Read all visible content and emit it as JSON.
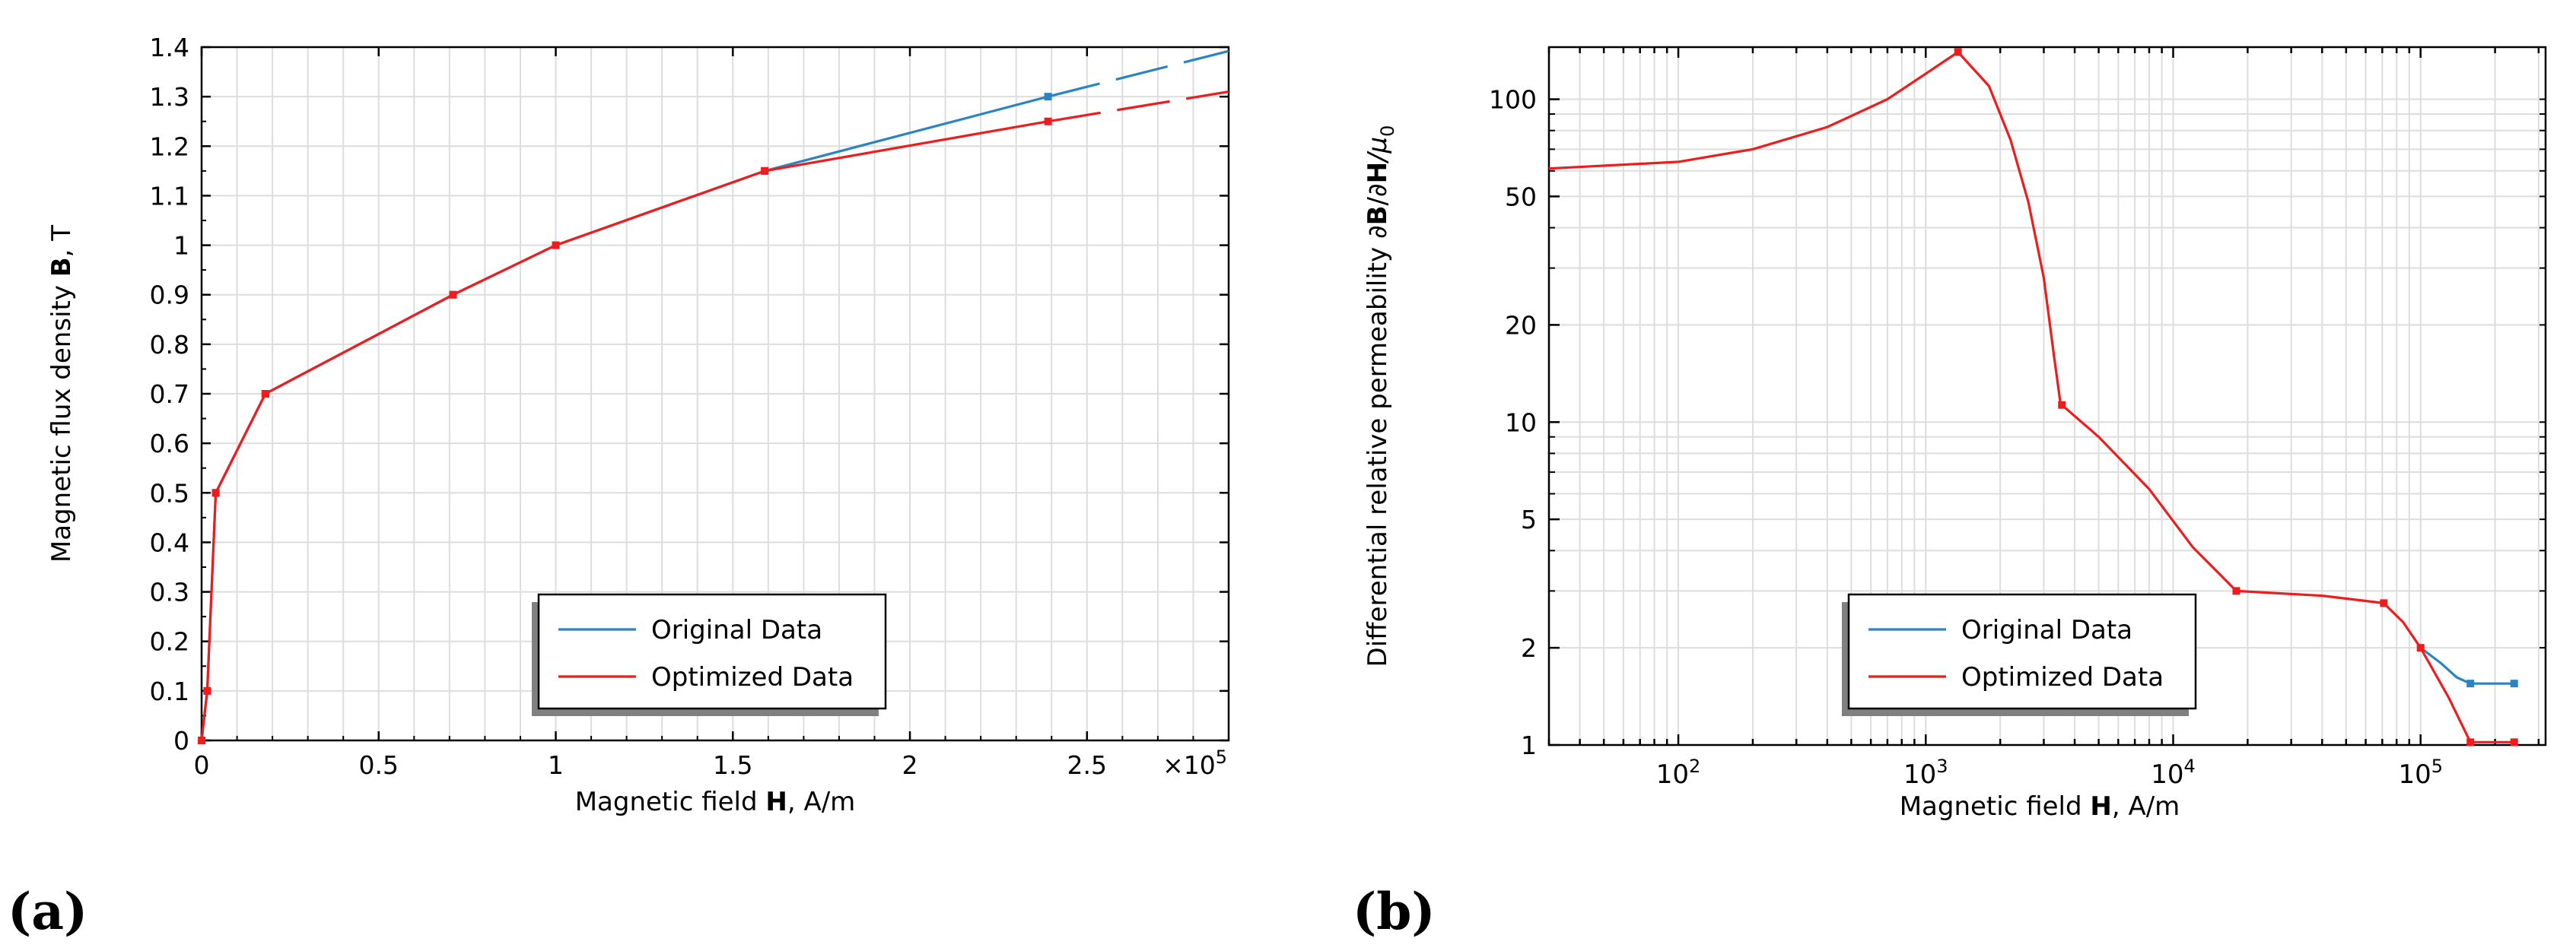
{
  "colors": {
    "original": "#2b83c1",
    "optimized": "#ee1c1c",
    "grid": "#dddddd",
    "axis": "#000000"
  },
  "panel_labels": {
    "a": "(a)",
    "b": "(b)"
  },
  "chart_data": [
    {
      "type": "line",
      "id": "a",
      "title": "",
      "xlabel_pre": "Magnetic field ",
      "xlabel_bold": "H",
      "xlabel_post": ", A/m",
      "ylabel_pre": "Magnetic flux density ",
      "ylabel_bold": "B",
      "ylabel_post": ", T",
      "x_multiplier": "×10",
      "x_multiplier_exp": "5",
      "xlim": [
        0,
        2.9
      ],
      "ylim": [
        0,
        1.4
      ],
      "xticks": [
        0,
        0.5,
        1,
        1.5,
        2,
        2.5
      ],
      "xtick_labels": [
        "0",
        "0.5",
        "1",
        "1.5",
        "2",
        "2.5"
      ],
      "yticks": [
        0,
        0.1,
        0.2,
        0.3,
        0.4,
        0.5,
        0.6,
        0.7,
        0.8,
        0.9,
        1,
        1.1,
        1.2,
        1.3,
        1.4
      ],
      "ytick_labels": [
        "0",
        "0.1",
        "0.2",
        "0.3",
        "0.4",
        "0.5",
        "0.6",
        "0.7",
        "0.8",
        "0.9",
        "1",
        "1.1",
        "1.2",
        "1.3",
        "1.4"
      ],
      "grid": true,
      "legend": {
        "entries": [
          "Original Data",
          "Optimized Data"
        ],
        "placement": "bottom-center"
      },
      "series": [
        {
          "name": "Original Data",
          "x": [
            0,
            0.016,
            0.04,
            0.18,
            0.71,
            1.0,
            1.59,
            2.39
          ],
          "y": [
            0,
            0.1,
            0.5,
            0.7,
            0.9,
            1.0,
            1.15,
            1.3
          ],
          "extrapolation": {
            "x": [
              2.39,
              2.9
            ],
            "y": [
              1.3,
              1.392
            ]
          }
        },
        {
          "name": "Optimized Data",
          "x": [
            0,
            0.016,
            0.04,
            0.18,
            0.71,
            1.0,
            1.59,
            2.39
          ],
          "y": [
            0,
            0.1,
            0.5,
            0.7,
            0.9,
            1.0,
            1.15,
            1.25
          ],
          "extrapolation": {
            "x": [
              2.39,
              2.9
            ],
            "y": [
              1.25,
              1.31
            ]
          }
        }
      ]
    },
    {
      "type": "line",
      "id": "b",
      "title": "",
      "xscale": "log",
      "yscale": "log",
      "xlabel_pre": "Magnetic field ",
      "xlabel_bold": "H",
      "xlabel_post": ", A/m",
      "ylabel_pre": "Differential relative permeability ∂",
      "ylabel_bold": "B",
      "ylabel_mid": "/∂",
      "ylabel_bold2": "H",
      "ylabel_mu": "/μ",
      "ylabel_sub": "0",
      "xlim": [
        30,
        320000
      ],
      "ylim": [
        1,
        145
      ],
      "xtick_labels": [
        {
          "base": "10",
          "exp": "2",
          "value": 100
        },
        {
          "base": "10",
          "exp": "3",
          "value": 1000
        },
        {
          "base": "10",
          "exp": "4",
          "value": 10000
        },
        {
          "base": "10",
          "exp": "5",
          "value": 100000
        }
      ],
      "yticks": [
        1,
        2,
        5,
        10,
        20,
        50,
        100
      ],
      "ytick_labels": [
        "1",
        "2",
        "5",
        "10",
        "20",
        "50",
        "100"
      ],
      "grid": true,
      "legend": {
        "entries": [
          "Original Data",
          "Optimized Data"
        ],
        "placement": "bottom-center"
      },
      "series": [
        {
          "name": "Original Data",
          "x": [
            100000,
            120000,
            140000,
            159000,
            239000
          ],
          "y": [
            2.0,
            1.8,
            1.62,
            1.55,
            1.55
          ],
          "markers_x": [
            159000,
            239000
          ],
          "markers_y": [
            1.55,
            1.55
          ]
        },
        {
          "name": "Optimized Data",
          "x": [
            30,
            100,
            200,
            400,
            700,
            1000,
            1350,
            1800,
            2200,
            2600,
            3000,
            3300,
            3500,
            3550,
            5000,
            8000,
            12000,
            18000,
            40000,
            71000,
            85000,
            100000,
            130000,
            159000,
            239000
          ],
          "y": [
            61,
            64,
            70,
            82,
            100,
            120,
            140,
            110,
            75,
            48,
            28,
            16,
            11.5,
            11.3,
            9.0,
            6.2,
            4.1,
            3.0,
            2.9,
            2.75,
            2.4,
            2.0,
            1.4,
            1.02,
            1.02
          ],
          "markers_x": [
            1350,
            3550,
            18000,
            71000,
            100000,
            159000,
            239000
          ],
          "markers_y": [
            140,
            11.3,
            3.0,
            2.75,
            2.0,
            1.02,
            1.02
          ]
        }
      ]
    }
  ]
}
